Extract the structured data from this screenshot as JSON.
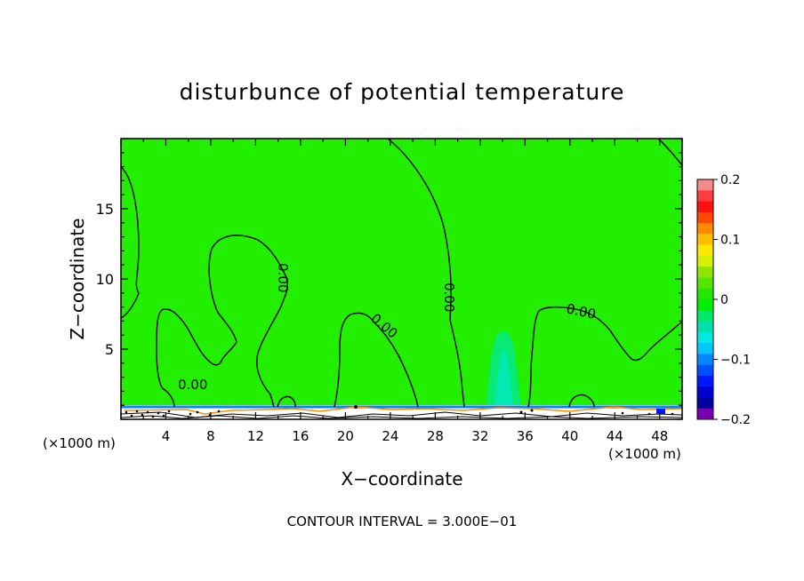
{
  "chart_data": {
    "type": "contour",
    "title": "disturbunce of potential temperature",
    "xlabel": "X−coordinate",
    "ylabel": "Z−coordinate",
    "x_unit_left": "(×1000 m)",
    "x_unit_right": "(×1000 m)",
    "footer": "CONTOUR INTERVAL = 3.000E−01",
    "xlim": [
      0,
      50
    ],
    "ylim": [
      0,
      20
    ],
    "xticks": [
      4,
      8,
      12,
      16,
      20,
      24,
      28,
      32,
      36,
      40,
      44,
      48
    ],
    "yticks": [
      5,
      10,
      15
    ],
    "grid": false,
    "contour_labels": [
      "0.00",
      "0.00",
      "0.00",
      "0.00",
      "0.00",
      "0.00"
    ],
    "colorbar": {
      "min": -0.2,
      "max": 0.2,
      "tick_labels": [
        "0.2",
        "0.1",
        "0",
        "−0.1",
        "−0.2"
      ],
      "tick_values": [
        0.2,
        0.1,
        0,
        -0.1,
        -0.2
      ],
      "colors": [
        "#f78a8a",
        "#ff3d3d",
        "#ff1010",
        "#ff4a00",
        "#ff8c00",
        "#ffbe00",
        "#ffe800",
        "#d8f000",
        "#8ee600",
        "#55e400",
        "#22e800",
        "#00ee00",
        "#00e86a",
        "#00e0a8",
        "#00e8e0",
        "#00c8ff",
        "#0088ff",
        "#0050ff",
        "#0018ff",
        "#0000d0",
        "#0000a0",
        "#7a00b0"
      ]
    },
    "background_fill": "#22ee00"
  }
}
